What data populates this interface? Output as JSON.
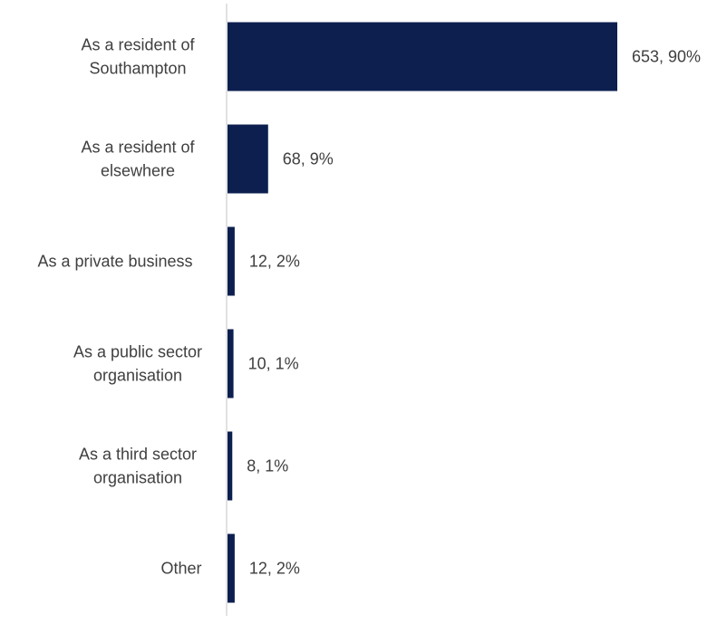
{
  "chart_data": {
    "type": "bar",
    "orientation": "horizontal",
    "title": "",
    "xlabel": "",
    "ylabel": "",
    "categories": [
      [
        "As a resident of",
        "Southampton"
      ],
      [
        "As a resident of",
        "elsewhere"
      ],
      [
        "As a private business"
      ],
      [
        "As a public sector",
        "organisation"
      ],
      [
        "As a third sector",
        "organisation"
      ],
      [
        "Other"
      ]
    ],
    "values": [
      653,
      68,
      12,
      10,
      8,
      12
    ],
    "data_labels": [
      "653, 90%",
      "68, 9%",
      "12, 2%",
      "10, 1%",
      "8, 1%",
      "12, 2%"
    ],
    "xlim": [
      0,
      653
    ],
    "grid": false,
    "legend": "none",
    "colors": {
      "bar": "#0c1f4f",
      "axis": "#d9d9d9",
      "text": "#404040"
    }
  }
}
